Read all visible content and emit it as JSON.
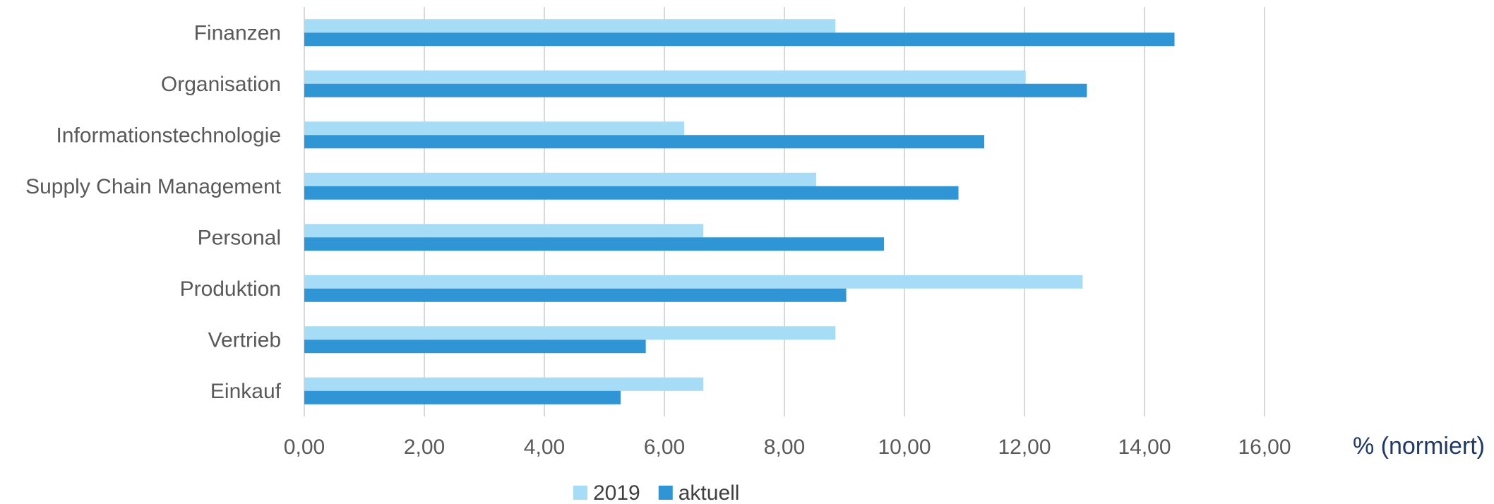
{
  "chart_data": {
    "type": "bar",
    "orientation": "horizontal",
    "categories": [
      "Finanzen",
      "Organisation",
      "Informationstechnologie",
      "Supply Chain Management",
      "Personal",
      "Produktion",
      "Vertrieb",
      "Einkauf"
    ],
    "series": [
      {
        "name": "2019",
        "color": "#a6dcf5",
        "values": [
          8.85,
          12.02,
          6.33,
          8.53,
          6.65,
          12.97,
          8.85,
          6.65
        ]
      },
      {
        "name": "aktuell",
        "color": "#2f95d4",
        "values": [
          14.5,
          13.04,
          11.33,
          10.9,
          9.66,
          9.03,
          5.69,
          5.27
        ]
      }
    ],
    "xlim": [
      0,
      16
    ],
    "xticks": [
      "0,00",
      "2,00",
      "4,00",
      "6,00",
      "8,00",
      "10,00",
      "12,00",
      "14,00",
      "16,00"
    ],
    "xlabel": "% (normiert)",
    "xlabel_color": "#1f3864",
    "grid": "vertical",
    "legend_position": "bottom"
  }
}
